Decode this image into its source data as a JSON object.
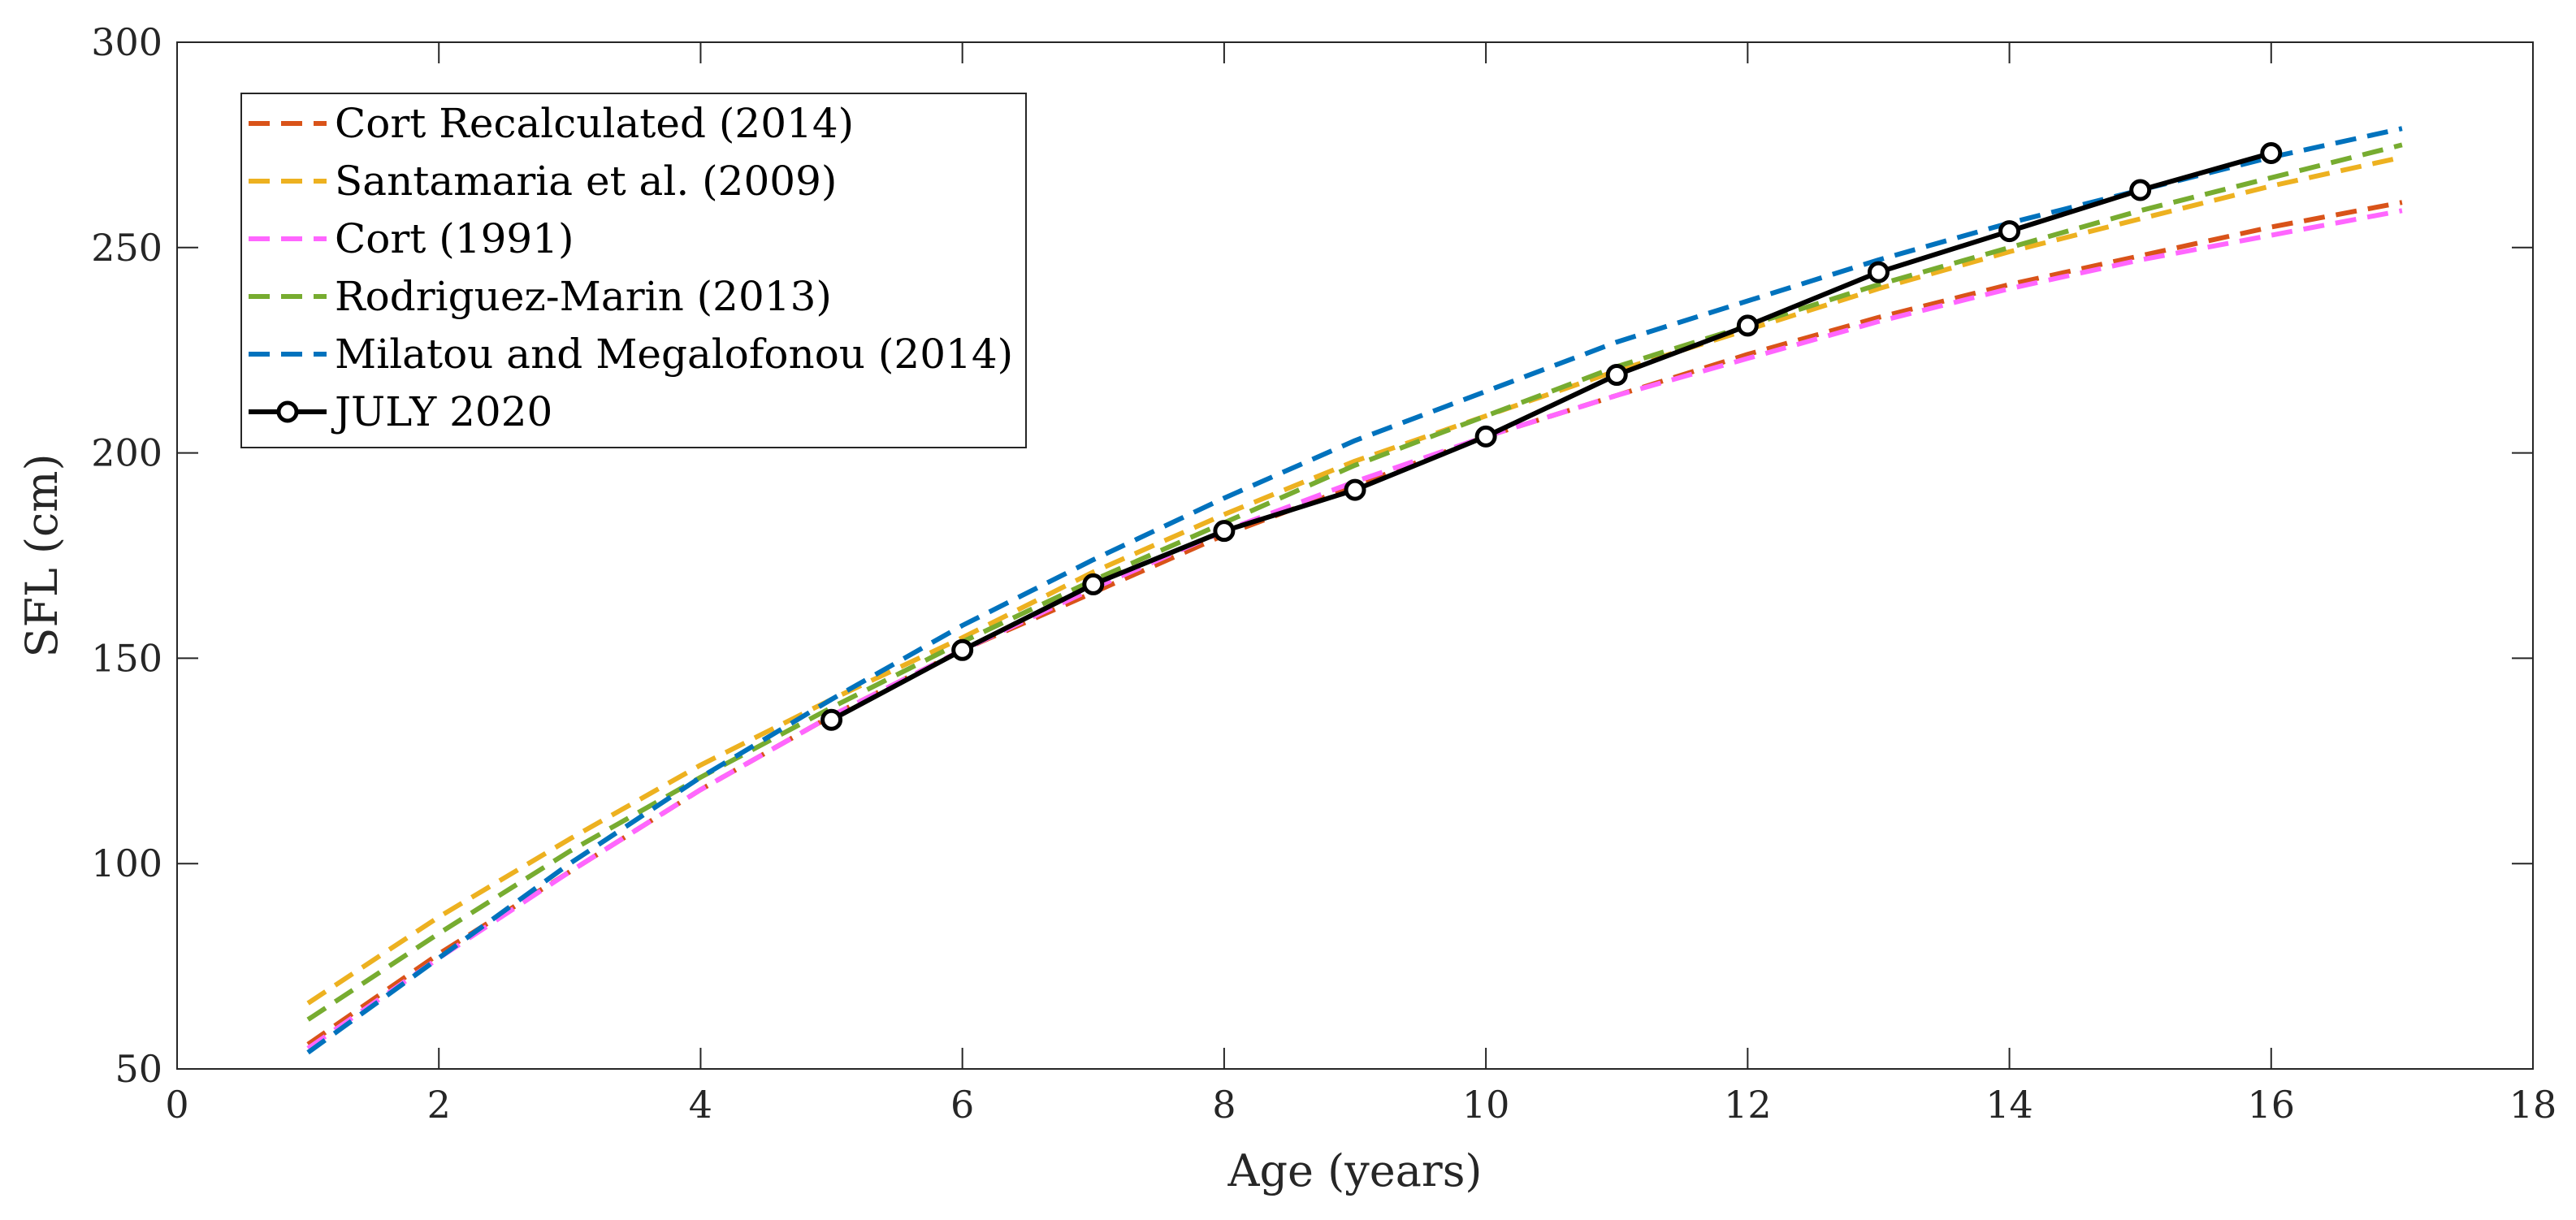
{
  "chart_data": {
    "type": "line",
    "title": "",
    "xlabel": "Age (years)",
    "ylabel": "SFL (cm)",
    "xlim": [
      0,
      18
    ],
    "ylim": [
      50,
      300
    ],
    "xticks": [
      0,
      2,
      4,
      6,
      8,
      10,
      12,
      14,
      16,
      18
    ],
    "yticks": [
      50,
      100,
      150,
      200,
      250,
      300
    ],
    "grid": false,
    "legend_position": "top-left",
    "series": [
      {
        "name": "Cort Recalculated (2014)",
        "color": "#D95319",
        "style": "dashed",
        "x": [
          1,
          2,
          3,
          4,
          5,
          6,
          7,
          8,
          9,
          10,
          11,
          12,
          13,
          14,
          15,
          16,
          17
        ],
        "y": [
          56,
          78,
          98,
          118,
          136,
          152,
          166,
          180,
          192,
          204,
          214,
          224,
          233,
          241,
          248,
          255,
          261
        ]
      },
      {
        "name": "Santamaria et al. (2009)",
        "color": "#EDB120",
        "style": "dashed",
        "x": [
          1,
          2,
          3,
          4,
          5,
          6,
          7,
          8,
          9,
          10,
          11,
          12,
          13,
          14,
          15,
          16,
          17
        ],
        "y": [
          66,
          87,
          106,
          124,
          140,
          155,
          171,
          185,
          198,
          209,
          220,
          230,
          240,
          249,
          257,
          265,
          272
        ]
      },
      {
        "name": "Cort (1991)",
        "color": "#FF66FF",
        "style": "dashed",
        "x": [
          1,
          2,
          3,
          4,
          5,
          6,
          7,
          8,
          9,
          10,
          11,
          12,
          13,
          14,
          15,
          16,
          17
        ],
        "y": [
          55,
          77,
          98,
          118,
          136,
          152,
          167,
          181,
          193,
          204,
          214,
          223,
          232,
          240,
          247,
          253,
          259
        ]
      },
      {
        "name": "Rodriguez-Marin (2013)",
        "color": "#77AC30",
        "style": "dashed",
        "x": [
          1,
          2,
          3,
          4,
          5,
          6,
          7,
          8,
          9,
          10,
          11,
          12,
          13,
          14,
          15,
          16,
          17
        ],
        "y": [
          62,
          83,
          103,
          121,
          138,
          154,
          169,
          183,
          197,
          209,
          221,
          231,
          241,
          250,
          259,
          267,
          275
        ]
      },
      {
        "name": "Milatou and Megalofonou (2014)",
        "color": "#0072BD",
        "style": "dashed",
        "x": [
          1,
          2,
          3,
          4,
          5,
          6,
          7,
          8,
          9,
          10,
          11,
          12,
          13,
          14,
          15,
          16,
          17
        ],
        "y": [
          54,
          77,
          100,
          121,
          140,
          158,
          174,
          189,
          203,
          215,
          227,
          237,
          247,
          256,
          264,
          272,
          279
        ]
      },
      {
        "name": "JULY 2020",
        "color": "#000000",
        "style": "solid",
        "marker": "circle",
        "x": [
          5,
          6,
          7,
          8,
          9,
          10,
          11,
          12,
          13,
          14,
          15,
          16
        ],
        "y": [
          135,
          152,
          168,
          181,
          191,
          204,
          219,
          231,
          244,
          254,
          264,
          273
        ]
      }
    ]
  }
}
